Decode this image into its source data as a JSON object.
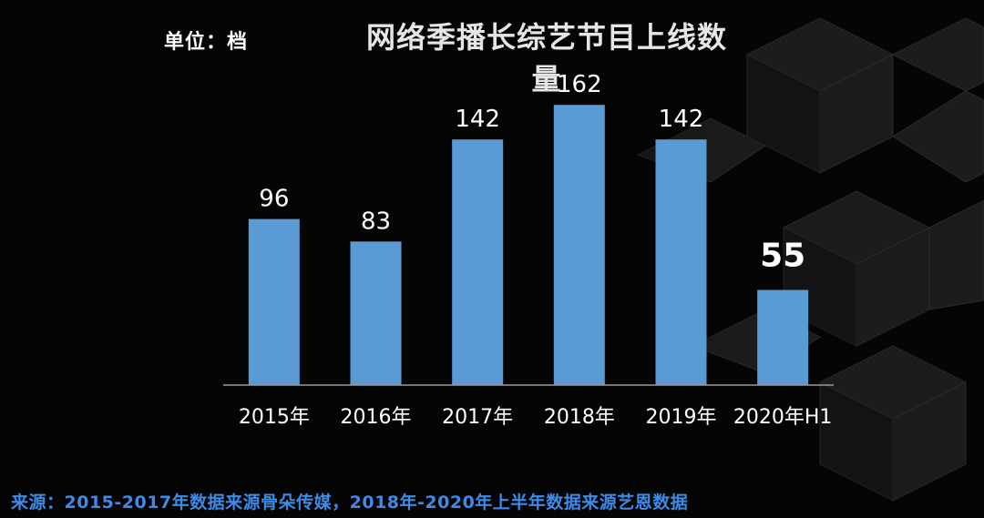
{
  "header": {
    "unit": "单位：档",
    "title": "网络季播长综艺节目上线数量"
  },
  "footer": {
    "source": "来源：2015-2017年数据来源骨朵传媒，2018年-2020年上半年数据来源艺恩数据"
  },
  "colors": {
    "bar": "#5b9bd5",
    "axis": "#9a9a9a",
    "text": "#ffffff",
    "source": "#3d8be6"
  },
  "chart_data": {
    "type": "bar",
    "categories": [
      "2015年",
      "2016年",
      "2017年",
      "2018年",
      "2019年",
      "2020年H1"
    ],
    "values": [
      96,
      83,
      142,
      162,
      142,
      55
    ],
    "ylim": [
      0,
      170
    ],
    "grid": false,
    "legend": "none",
    "xlabel": "",
    "ylabel": ""
  }
}
